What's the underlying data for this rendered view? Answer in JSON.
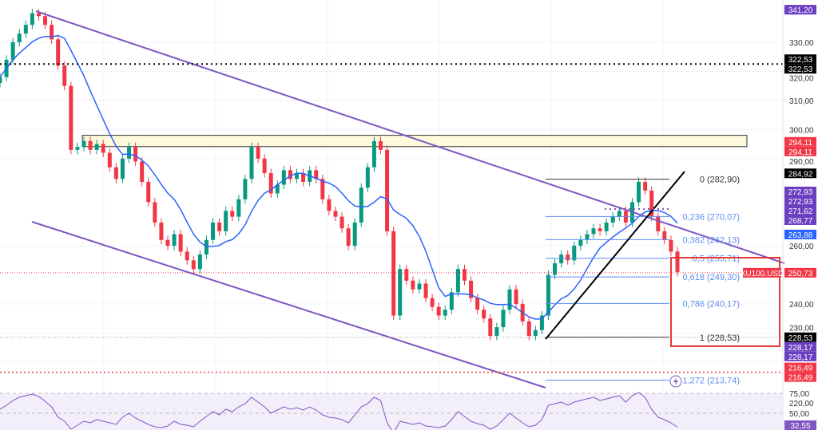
{
  "chart_data": {
    "type": "candlestick",
    "symbol": "XU100.USD",
    "price_axis": {
      "ticks": [
        330,
        320,
        310,
        300,
        290,
        260,
        240,
        230,
        220
      ],
      "ylim": [
        205,
        345
      ]
    },
    "closes": [
      318,
      324,
      330,
      333,
      336,
      340,
      339,
      336,
      331,
      322,
      315,
      293,
      294,
      296,
      293,
      295,
      292,
      287,
      283,
      290,
      294,
      289,
      282,
      275,
      268,
      262,
      260,
      264,
      258,
      255,
      252,
      257,
      262,
      268,
      265,
      272,
      270,
      276,
      283,
      294,
      290,
      285,
      278,
      281,
      286,
      283,
      285,
      282,
      286,
      283,
      276,
      272,
      270,
      266,
      260,
      268,
      280,
      287,
      296,
      293,
      265,
      236,
      252,
      248,
      245,
      247,
      242,
      239,
      236,
      238,
      244,
      252,
      248,
      242,
      238,
      235,
      229,
      232,
      238,
      245,
      240,
      234,
      229,
      231,
      236,
      250,
      254,
      257,
      255,
      260,
      262,
      264,
      266,
      265,
      268,
      270,
      272,
      268,
      275,
      282,
      279,
      270,
      265,
      262,
      258,
      251
    ],
    "ma_period": 9,
    "rsi": {
      "ticks": [
        75,
        50
      ],
      "current": 32.55,
      "values": [
        55,
        60,
        66,
        70,
        72,
        74,
        71,
        65,
        58,
        45,
        40,
        30,
        35,
        40,
        38,
        42,
        40,
        38,
        36,
        45,
        50,
        44,
        40,
        36,
        33,
        32,
        34,
        40,
        36,
        35,
        33,
        40,
        46,
        52,
        48,
        55,
        52,
        58,
        62,
        70,
        64,
        58,
        50,
        54,
        58,
        55,
        57,
        54,
        58,
        54,
        48,
        45,
        44,
        42,
        38,
        48,
        58,
        62,
        70,
        66,
        38,
        25,
        40,
        38,
        36,
        38,
        34,
        33,
        32,
        34,
        42,
        52,
        46,
        40,
        37,
        35,
        30,
        34,
        42,
        50,
        44,
        38,
        33,
        35,
        42,
        60,
        62,
        64,
        60,
        64,
        66,
        68,
        70,
        66,
        68,
        70,
        72,
        64,
        72,
        76,
        70,
        55,
        45,
        42,
        38,
        32.55
      ]
    },
    "levels": {
      "high_badge": {
        "value": "341,20",
        "price": 341.2,
        "color": "#6a3fc0"
      },
      "resistance_dotted": {
        "values": [
          "322,53",
          "322,53"
        ],
        "price": 322.53,
        "color": "#000000"
      },
      "zone": {
        "values": [
          "294,11",
          "294,11"
        ],
        "price_top": 298,
        "price_bottom": 294.11,
        "color": "#f23645"
      },
      "last_high": {
        "value": "284,92",
        "price": 284.92
      },
      "purple_stack": {
        "values": [
          "272,93",
          "272,93",
          "271,62",
          "268,77"
        ]
      },
      "ma_badge": {
        "value": "263,88",
        "price": 263.88,
        "color": "#2962ff"
      },
      "current": {
        "value": "250,73",
        "price": 250.73,
        "label": "XU100.USD",
        "color": "#f23645"
      },
      "low_badge": {
        "value": "228,53",
        "price": 228.53
      },
      "low_stack": {
        "values": [
          "228,17",
          "228,17"
        ]
      },
      "support_dotted": {
        "values": [
          "216,49",
          "216,49"
        ],
        "price": 216.49
      }
    },
    "fibonacci": [
      {
        "label": "0 (282,90)",
        "ratio": 0,
        "price": 282.9
      },
      {
        "label": "0,236 (270,07)",
        "ratio": 0.236,
        "price": 270.07
      },
      {
        "label": "0,382 (262,13)",
        "ratio": 0.382,
        "price": 262.13
      },
      {
        "label": "0,5 (255,71)",
        "ratio": 0.5,
        "price": 255.71
      },
      {
        "label": "0,618 (249,30)",
        "ratio": 0.618,
        "price": 249.3
      },
      {
        "label": "0,786 (240,17)",
        "ratio": 0.786,
        "price": 240.17
      },
      {
        "label": "1 (228,53)",
        "ratio": 1,
        "price": 228.53
      },
      {
        "label": "1,272 (213,74)",
        "ratio": 1.272,
        "price": 213.74
      }
    ],
    "colors": {
      "up": "#089981",
      "down": "#f23645",
      "ma": "#2962ff",
      "channel": "#7e57c2",
      "fib": "#5b8def"
    }
  }
}
